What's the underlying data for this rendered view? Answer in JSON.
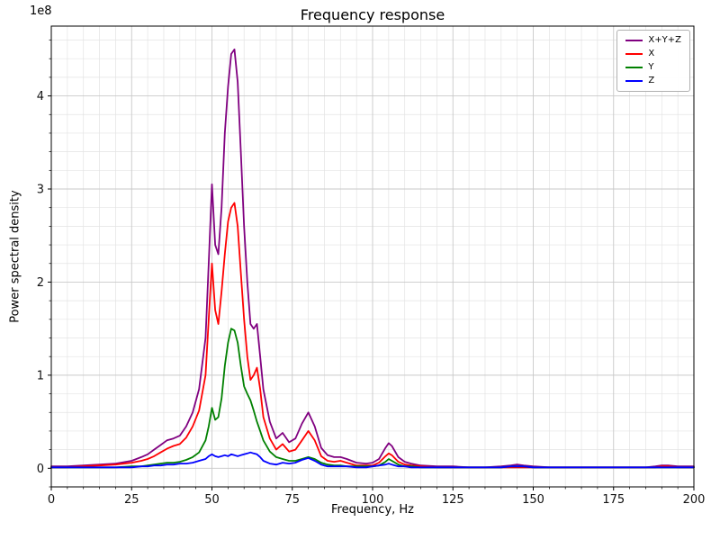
{
  "chart_data": {
    "type": "line",
    "title": "Frequency response",
    "xlabel": "Frequency, Hz",
    "ylabel": "Power spectral density",
    "y_offset_label": "1e8",
    "y_multiplier": 100000000,
    "xlim": [
      0,
      200
    ],
    "ylim": [
      -0.2,
      4.75
    ],
    "xticks": [
      0,
      25,
      50,
      75,
      100,
      125,
      150,
      175,
      200
    ],
    "yticks": [
      0,
      1,
      2,
      3,
      4
    ],
    "x_minor_step": 5,
    "y_minor_step": 0.2,
    "grid": "both",
    "legend_position": "upper right",
    "x": [
      0,
      5,
      10,
      15,
      20,
      25,
      28,
      30,
      32,
      34,
      36,
      38,
      40,
      42,
      44,
      46,
      48,
      49,
      50,
      51,
      52,
      53,
      54,
      55,
      56,
      57,
      58,
      59,
      60,
      61,
      62,
      63,
      64,
      65,
      66,
      68,
      70,
      72,
      74,
      76,
      78,
      80,
      82,
      84,
      86,
      88,
      90,
      92,
      95,
      98,
      100,
      102,
      104,
      105,
      106,
      108,
      110,
      112,
      115,
      120,
      125,
      130,
      135,
      140,
      143,
      145,
      147,
      150,
      155,
      160,
      165,
      170,
      175,
      180,
      185,
      188,
      190,
      192,
      195,
      200
    ],
    "series": [
      {
        "name": "X+Y+Z",
        "color": "#800080",
        "values": [
          0.02,
          0.02,
          0.03,
          0.04,
          0.05,
          0.08,
          0.12,
          0.15,
          0.2,
          0.25,
          0.3,
          0.32,
          0.35,
          0.45,
          0.6,
          0.85,
          1.4,
          2.2,
          3.05,
          2.4,
          2.3,
          2.8,
          3.6,
          4.1,
          4.45,
          4.5,
          4.15,
          3.4,
          2.6,
          2.0,
          1.55,
          1.5,
          1.55,
          1.2,
          0.85,
          0.5,
          0.32,
          0.38,
          0.28,
          0.32,
          0.48,
          0.6,
          0.45,
          0.22,
          0.14,
          0.12,
          0.12,
          0.1,
          0.06,
          0.05,
          0.06,
          0.1,
          0.22,
          0.27,
          0.24,
          0.12,
          0.07,
          0.05,
          0.03,
          0.02,
          0.02,
          0.01,
          0.01,
          0.02,
          0.03,
          0.04,
          0.03,
          0.02,
          0.01,
          0.01,
          0.01,
          0.01,
          0.01,
          0.01,
          0.01,
          0.02,
          0.03,
          0.03,
          0.02,
          0.02
        ]
      },
      {
        "name": "X",
        "color": "#ff0000",
        "values": [
          0.01,
          0.01,
          0.02,
          0.03,
          0.04,
          0.06,
          0.08,
          0.1,
          0.13,
          0.17,
          0.21,
          0.24,
          0.26,
          0.33,
          0.45,
          0.62,
          1.0,
          1.6,
          2.2,
          1.7,
          1.55,
          1.9,
          2.3,
          2.65,
          2.8,
          2.85,
          2.6,
          2.1,
          1.6,
          1.2,
          0.95,
          1.0,
          1.08,
          0.85,
          0.55,
          0.32,
          0.2,
          0.26,
          0.18,
          0.2,
          0.3,
          0.4,
          0.3,
          0.13,
          0.08,
          0.07,
          0.08,
          0.06,
          0.03,
          0.03,
          0.03,
          0.06,
          0.13,
          0.16,
          0.14,
          0.07,
          0.04,
          0.03,
          0.02,
          0.01,
          0.01,
          0.01,
          0.01,
          0.01,
          0.01,
          0.01,
          0.01,
          0.01,
          0.01,
          0.01,
          0.01,
          0.01,
          0.01,
          0.01,
          0.01,
          0.01,
          0.02,
          0.02,
          0.01,
          0.01
        ]
      },
      {
        "name": "Y",
        "color": "#008000",
        "values": [
          0.01,
          0.01,
          0.01,
          0.01,
          0.01,
          0.02,
          0.02,
          0.03,
          0.04,
          0.05,
          0.06,
          0.06,
          0.07,
          0.09,
          0.12,
          0.17,
          0.3,
          0.45,
          0.65,
          0.52,
          0.55,
          0.75,
          1.1,
          1.35,
          1.5,
          1.48,
          1.35,
          1.1,
          0.88,
          0.8,
          0.73,
          0.62,
          0.5,
          0.4,
          0.3,
          0.18,
          0.12,
          0.1,
          0.08,
          0.08,
          0.1,
          0.12,
          0.1,
          0.06,
          0.04,
          0.03,
          0.03,
          0.02,
          0.02,
          0.02,
          0.02,
          0.03,
          0.07,
          0.1,
          0.08,
          0.04,
          0.02,
          0.02,
          0.01,
          0.01,
          0.01,
          0.01,
          0.01,
          0.01,
          0.02,
          0.02,
          0.02,
          0.01,
          0.01,
          0.01,
          0.01,
          0.01,
          0.01,
          0.01,
          0.01,
          0.01,
          0.01,
          0.01,
          0.01,
          0.01
        ]
      },
      {
        "name": "Z",
        "color": "#0000ff",
        "values": [
          0.01,
          0.01,
          0.01,
          0.01,
          0.01,
          0.01,
          0.02,
          0.02,
          0.03,
          0.03,
          0.04,
          0.04,
          0.05,
          0.05,
          0.06,
          0.08,
          0.1,
          0.13,
          0.15,
          0.13,
          0.12,
          0.13,
          0.14,
          0.13,
          0.15,
          0.14,
          0.13,
          0.14,
          0.15,
          0.16,
          0.17,
          0.16,
          0.15,
          0.12,
          0.08,
          0.05,
          0.04,
          0.06,
          0.05,
          0.06,
          0.09,
          0.11,
          0.08,
          0.04,
          0.02,
          0.02,
          0.02,
          0.02,
          0.01,
          0.01,
          0.02,
          0.03,
          0.04,
          0.05,
          0.04,
          0.02,
          0.02,
          0.01,
          0.01,
          0.01,
          0.01,
          0.01,
          0.01,
          0.01,
          0.02,
          0.02,
          0.02,
          0.01,
          0.01,
          0.01,
          0.01,
          0.01,
          0.01,
          0.01,
          0.01,
          0.01,
          0.01,
          0.01,
          0.01,
          0.01
        ]
      }
    ]
  }
}
